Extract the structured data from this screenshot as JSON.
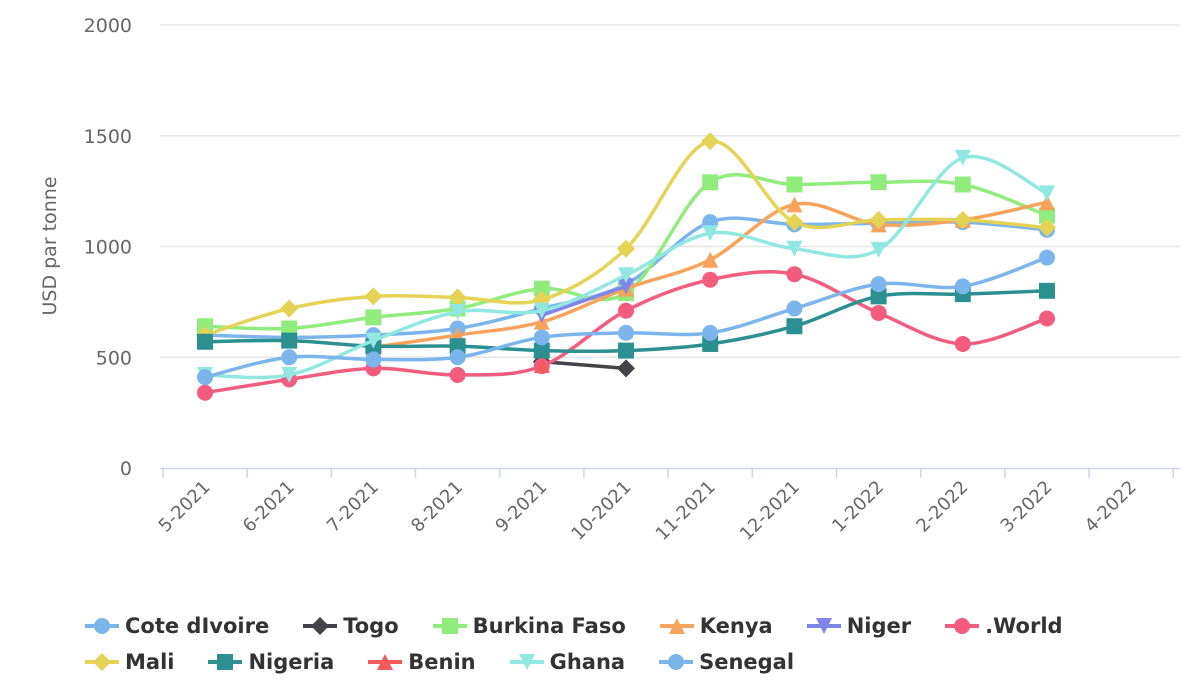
{
  "chart_data": {
    "type": "line",
    "title": "",
    "xlabel": "",
    "ylabel": "USD par tonne",
    "ylim": [
      0,
      2000
    ],
    "yticks": [
      "0",
      "500",
      "1000",
      "1500",
      "2000"
    ],
    "grid": true,
    "legend_position": "bottom",
    "categories": [
      "5-2021",
      "6-2021",
      "7-2021",
      "8-2021",
      "9-2021",
      "10-2021",
      "11-2021",
      "12-2021",
      "1-2022",
      "2-2022",
      "3-2022",
      "4-2022"
    ],
    "series": [
      {
        "name": "Cote dIvoire",
        "color": "#7cb5ec",
        "marker": "circle",
        "values": [
          600,
          590,
          600,
          630,
          720,
          830,
          1110,
          1100,
          1105,
          1110,
          1075,
          null
        ]
      },
      {
        "name": "Togo",
        "color": "#434348",
        "marker": "diamond",
        "values": [
          null,
          null,
          null,
          null,
          480,
          450,
          null,
          null,
          null,
          null,
          null,
          null
        ]
      },
      {
        "name": "Burkina Faso",
        "color": "#90ed7d",
        "marker": "square",
        "values": [
          640,
          630,
          680,
          720,
          810,
          790,
          1290,
          1280,
          1290,
          1280,
          1140,
          null
        ]
      },
      {
        "name": "Kenya",
        "color": "#f7a35c",
        "marker": "triangle",
        "values": [
          null,
          null,
          545,
          600,
          660,
          810,
          940,
          1190,
          1100,
          1120,
          1200,
          null
        ]
      },
      {
        "name": "Niger",
        "color": "#8085e9",
        "marker": "triangle-down",
        "values": [
          null,
          null,
          null,
          null,
          690,
          820,
          null,
          null,
          null,
          null,
          null,
          null
        ]
      },
      {
        "name": ".World",
        "color": "#f15c80",
        "marker": "circle",
        "values": [
          340,
          400,
          450,
          420,
          460,
          710,
          850,
          875,
          700,
          560,
          675,
          null
        ]
      },
      {
        "name": "Mali",
        "color": "#e4d354",
        "marker": "diamond",
        "values": [
          600,
          720,
          775,
          770,
          760,
          990,
          1475,
          1110,
          1120,
          1120,
          1085,
          null
        ]
      },
      {
        "name": "Nigeria",
        "color": "#2b908f",
        "marker": "square",
        "values": [
          570,
          575,
          550,
          550,
          530,
          530,
          560,
          640,
          775,
          785,
          800,
          null
        ]
      },
      {
        "name": "Benin",
        "color": "#f45b5b",
        "marker": "triangle",
        "values": [
          null,
          null,
          null,
          null,
          465,
          null,
          null,
          null,
          null,
          null,
          null,
          null
        ]
      },
      {
        "name": "Ghana",
        "color": "#91e8e1",
        "marker": "triangle-down",
        "values": [
          420,
          420,
          575,
          705,
          710,
          870,
          1060,
          990,
          985,
          1400,
          1240,
          null
        ]
      },
      {
        "name": "Senegal",
        "color": "#7cb5ec",
        "marker": "circle",
        "values": [
          410,
          500,
          490,
          500,
          590,
          610,
          610,
          720,
          830,
          820,
          950,
          null
        ]
      }
    ]
  }
}
